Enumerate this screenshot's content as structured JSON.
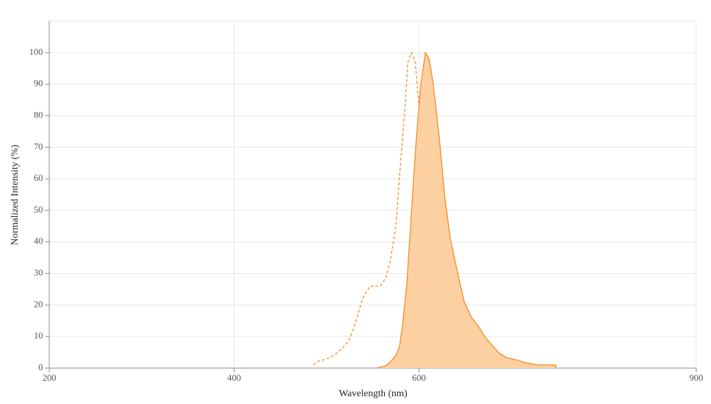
{
  "chart_data": {
    "type": "line",
    "x_label": "Wavelength (nm)",
    "y_label": "Normalized Intensity (%)",
    "xlim": [
      200,
      900
    ],
    "xticks": [
      200,
      400,
      600,
      900
    ],
    "ylim": [
      0,
      110
    ],
    "yticks": [
      0,
      10,
      20,
      30,
      40,
      50,
      60,
      70,
      80,
      90,
      100
    ],
    "grid": true,
    "series": [
      {
        "color": "#f5891f",
        "dashed": true,
        "filled": false,
        "x": [
          486,
          489,
          501,
          508,
          516,
          524,
          531,
          539,
          547,
          558,
          564,
          569,
          575,
          579,
          585,
          588,
          592,
          596,
          600,
          604,
          607,
          613,
          619,
          625,
          630,
          638
        ],
        "values": [
          1,
          2,
          3,
          4,
          6,
          8.5,
          14,
          22,
          26,
          26,
          28.5,
          34,
          45,
          61,
          83,
          97,
          100,
          97,
          83,
          61,
          36,
          18.5,
          7,
          3,
          1,
          0
        ]
      },
      {
        "color": "#f5891f",
        "dashed": false,
        "filled": true,
        "fill": "#fdd0a2",
        "x": [
          554,
          564,
          569,
          575,
          579,
          582,
          587,
          592,
          597,
          602,
          607,
          611,
          615,
          619,
          623,
          628,
          634,
          642,
          649,
          657,
          665,
          672,
          680,
          687,
          695,
          707,
          714,
          729,
          748,
          748
        ],
        "values": [
          0,
          0.7,
          2,
          4,
          7,
          13,
          27,
          50,
          72,
          90,
          100,
          98,
          91,
          81,
          70,
          54,
          41,
          30,
          21,
          16,
          13,
          9.6,
          7,
          4.7,
          3.3,
          2.5,
          1.8,
          1,
          1,
          0
        ]
      }
    ]
  }
}
